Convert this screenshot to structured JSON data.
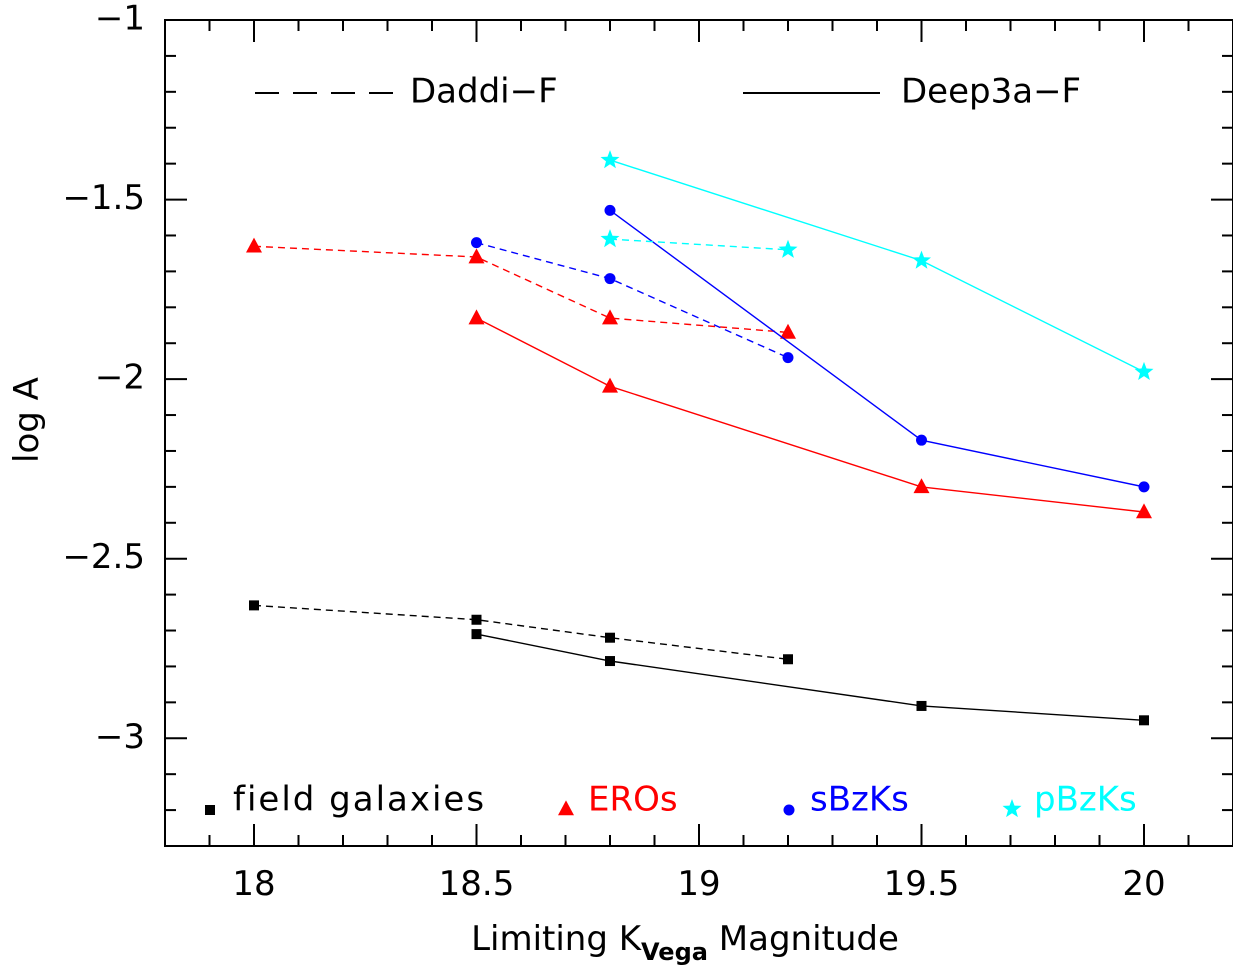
{
  "chart_data": {
    "type": "line",
    "xlabel": "Limiting K",
    "xlabel_subscript": "Vega",
    "xlabel_suffix": " Magnitude",
    "ylabel": "log A",
    "xlim": [
      17.8,
      20.2
    ],
    "ylim": [
      -3.3,
      -1.0
    ],
    "x_ticks": [
      18,
      18.5,
      19,
      19.5,
      20
    ],
    "x_tick_labels": [
      "18",
      "18.5",
      "19",
      "19.5",
      "20"
    ],
    "y_ticks": [
      -3,
      -2.5,
      -2,
      -1.5,
      -1
    ],
    "y_tick_labels": [
      "−3",
      "−2.5",
      "−2",
      "−1.5",
      "−1"
    ],
    "grid": false,
    "line_styles": [
      {
        "label": "Daddi−F",
        "style": "dashed"
      },
      {
        "label": "Deep3a−F",
        "style": "solid"
      }
    ],
    "markers": [
      {
        "label": "field galaxies",
        "marker": "square",
        "color": "#000000"
      },
      {
        "label": "EROs",
        "marker": "triangle",
        "color": "#ff0000"
      },
      {
        "label": "sBzKs",
        "marker": "circle",
        "color": "#0000ff"
      },
      {
        "label": "pBzKs",
        "marker": "star",
        "color": "#00ffff"
      }
    ],
    "series": [
      {
        "group": "field galaxies",
        "dataset": "Daddi-F",
        "style": "dashed",
        "marker": "square",
        "color": "#000000",
        "x": [
          18.0,
          18.5,
          18.8,
          19.2
        ],
        "y": [
          -2.63,
          -2.67,
          -2.72,
          -2.78
        ]
      },
      {
        "group": "field galaxies",
        "dataset": "Deep3a-F",
        "style": "solid",
        "marker": "square",
        "color": "#000000",
        "x": [
          18.5,
          18.8,
          19.5,
          20.0
        ],
        "y": [
          -2.71,
          -2.785,
          -2.91,
          -2.95
        ]
      },
      {
        "group": "EROs",
        "dataset": "Daddi-F",
        "style": "dashed",
        "marker": "triangle",
        "color": "#ff0000",
        "x": [
          18.0,
          18.5,
          18.8,
          19.2
        ],
        "y": [
          -1.63,
          -1.66,
          -1.83,
          -1.87
        ]
      },
      {
        "group": "EROs",
        "dataset": "Deep3a-F",
        "style": "solid",
        "marker": "triangle",
        "color": "#ff0000",
        "x": [
          18.5,
          18.8,
          19.5,
          20.0
        ],
        "y": [
          -1.83,
          -2.02,
          -2.3,
          -2.37
        ]
      },
      {
        "group": "sBzKs",
        "dataset": "Daddi-F",
        "style": "dashed",
        "marker": "circle",
        "color": "#0000ff",
        "x": [
          18.5,
          18.8,
          19.2
        ],
        "y": [
          -1.62,
          -1.72,
          -1.94
        ]
      },
      {
        "group": "sBzKs",
        "dataset": "Deep3a-F",
        "style": "solid",
        "marker": "circle",
        "color": "#0000ff",
        "x": [
          18.8,
          19.5,
          20.0
        ],
        "y": [
          -1.53,
          -2.17,
          -2.3
        ]
      },
      {
        "group": "pBzKs",
        "dataset": "Daddi-F",
        "style": "dashed",
        "marker": "star",
        "color": "#00ffff",
        "x": [
          18.8,
          19.2
        ],
        "y": [
          -1.61,
          -1.64
        ]
      },
      {
        "group": "pBzKs",
        "dataset": "Deep3a-F",
        "style": "solid",
        "marker": "star",
        "color": "#00ffff",
        "x": [
          18.8,
          19.5,
          20.0
        ],
        "y": [
          -1.39,
          -1.67,
          -1.98
        ]
      }
    ]
  }
}
